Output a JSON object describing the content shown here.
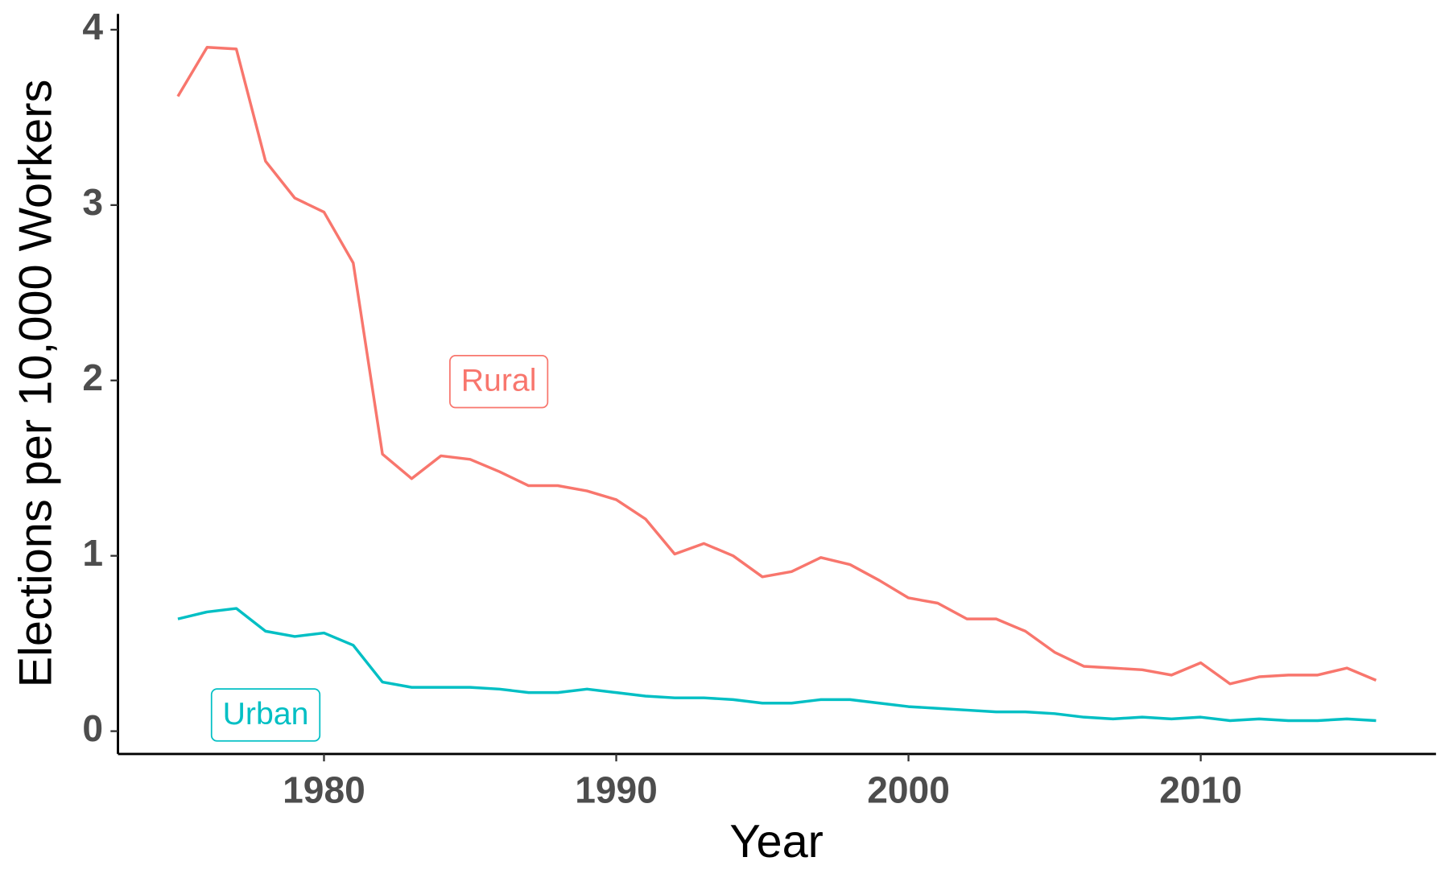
{
  "chart_data": {
    "type": "line",
    "x_label": "Year",
    "y_label": "Elections per 10,000 Workers",
    "x": [
      1975,
      1976,
      1977,
      1978,
      1979,
      1980,
      1981,
      1982,
      1983,
      1984,
      1985,
      1986,
      1987,
      1988,
      1989,
      1990,
      1991,
      1992,
      1993,
      1994,
      1995,
      1996,
      1997,
      1998,
      1999,
      2000,
      2001,
      2002,
      2003,
      2004,
      2005,
      2006,
      2007,
      2008,
      2009,
      2010,
      2011,
      2012,
      2013,
      2014,
      2015,
      2016
    ],
    "series": [
      {
        "name": "Rural",
        "color": "#F8766D",
        "values": [
          3.62,
          3.9,
          3.89,
          3.25,
          3.04,
          2.96,
          2.67,
          1.58,
          1.44,
          1.57,
          1.55,
          1.48,
          1.4,
          1.4,
          1.37,
          1.32,
          1.21,
          1.01,
          1.07,
          1.0,
          0.88,
          0.91,
          0.99,
          0.95,
          0.86,
          0.76,
          0.73,
          0.64,
          0.64,
          0.57,
          0.45,
          0.37,
          0.36,
          0.35,
          0.32,
          0.39,
          0.27,
          0.31,
          0.32,
          0.32,
          0.36,
          0.29
        ]
      },
      {
        "name": "Urban",
        "color": "#00BFC4",
        "values": [
          0.64,
          0.68,
          0.7,
          0.57,
          0.54,
          0.56,
          0.49,
          0.28,
          0.25,
          0.25,
          0.25,
          0.24,
          0.22,
          0.22,
          0.24,
          0.22,
          0.2,
          0.19,
          0.19,
          0.18,
          0.16,
          0.16,
          0.18,
          0.18,
          0.16,
          0.14,
          0.13,
          0.12,
          0.11,
          0.11,
          0.1,
          0.08,
          0.07,
          0.08,
          0.07,
          0.08,
          0.06,
          0.07,
          0.06,
          0.06,
          0.07,
          0.06
        ]
      }
    ],
    "xlim": [
      1972.95,
      2018.05
    ],
    "ylim": [
      -0.13,
      4.09
    ],
    "xticks": [
      1980,
      1990,
      2000,
      2010
    ],
    "yticks": [
      0,
      1,
      2,
      3,
      4
    ],
    "grid": false
  }
}
